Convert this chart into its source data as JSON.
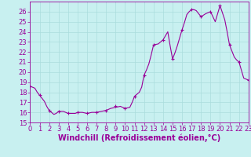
{
  "title": "",
  "xlabel": "Windchill (Refroidissement éolien,°C)",
  "ylabel": "",
  "bg_color": "#c8f0f0",
  "line_color": "#990099",
  "marker_color": "#990099",
  "xlim": [
    0,
    23
  ],
  "ylim": [
    15,
    27
  ],
  "yticks": [
    15,
    16,
    17,
    18,
    19,
    20,
    21,
    22,
    23,
    24,
    25,
    26
  ],
  "xticks": [
    0,
    1,
    2,
    3,
    4,
    5,
    6,
    7,
    8,
    9,
    10,
    11,
    12,
    13,
    14,
    15,
    16,
    17,
    18,
    19,
    20,
    21,
    22,
    23
  ],
  "hours": [
    0,
    0.25,
    0.5,
    0.75,
    1.0,
    1.25,
    1.5,
    1.75,
    2.0,
    2.25,
    2.5,
    2.75,
    3.0,
    3.25,
    3.5,
    3.75,
    4.0,
    4.25,
    4.5,
    4.75,
    5.0,
    5.25,
    5.5,
    5.75,
    6.0,
    6.25,
    6.5,
    6.75,
    7.0,
    7.25,
    7.5,
    7.75,
    8.0,
    8.25,
    8.5,
    8.75,
    9.0,
    9.25,
    9.5,
    9.75,
    10.0,
    10.25,
    10.5,
    10.75,
    11.0,
    11.25,
    11.5,
    11.75,
    12.0,
    12.25,
    12.5,
    12.75,
    13.0,
    13.25,
    13.5,
    13.75,
    14.0,
    14.25,
    14.5,
    14.75,
    15.0,
    15.25,
    15.5,
    15.75,
    16.0,
    16.25,
    16.5,
    16.75,
    17.0,
    17.25,
    17.5,
    17.75,
    18.0,
    18.25,
    18.5,
    18.75,
    19.0,
    19.25,
    19.5,
    19.75,
    20.0,
    20.25,
    20.5,
    20.75,
    21.0,
    21.25,
    21.5,
    21.75,
    22.0,
    22.25,
    22.5,
    22.75,
    23.0
  ],
  "values": [
    18.6,
    18.5,
    18.4,
    18.0,
    17.7,
    17.4,
    17.1,
    16.6,
    16.2,
    16.0,
    15.8,
    15.9,
    16.1,
    16.1,
    16.1,
    16.0,
    15.9,
    15.9,
    15.9,
    15.9,
    16.0,
    16.0,
    16.0,
    15.95,
    15.9,
    15.95,
    16.0,
    16.0,
    16.0,
    16.05,
    16.1,
    16.15,
    16.2,
    16.3,
    16.4,
    16.45,
    16.5,
    16.55,
    16.6,
    16.5,
    16.4,
    16.45,
    16.5,
    17.0,
    17.6,
    17.8,
    18.0,
    18.5,
    19.7,
    20.2,
    20.8,
    21.7,
    22.7,
    22.75,
    22.8,
    23.0,
    23.2,
    23.6,
    24.0,
    22.6,
    21.3,
    21.9,
    22.6,
    23.4,
    24.2,
    24.9,
    25.7,
    26.0,
    26.2,
    26.2,
    26.1,
    25.8,
    25.5,
    25.65,
    25.8,
    25.9,
    26.0,
    25.5,
    25.0,
    25.8,
    26.6,
    25.9,
    25.2,
    24.0,
    22.7,
    22.1,
    21.5,
    21.2,
    21.0,
    20.2,
    19.4,
    19.3,
    19.2
  ],
  "marker_hours": [
    0,
    1,
    2,
    3,
    4,
    5,
    6,
    7,
    8,
    9,
    10,
    11,
    12,
    13,
    14,
    15,
    16,
    17,
    18,
    19,
    20,
    21,
    22,
    23
  ],
  "marker_values": [
    18.6,
    17.7,
    16.2,
    16.1,
    15.9,
    16.0,
    15.9,
    16.0,
    16.2,
    16.6,
    16.4,
    17.6,
    19.7,
    22.7,
    23.2,
    21.3,
    24.2,
    26.2,
    25.5,
    26.0,
    26.6,
    22.7,
    21.0,
    19.2
  ],
  "grid_color": "#aadddd",
  "axis_color": "#990099",
  "tick_color": "#990099",
  "label_color": "#990099",
  "font_size": 6.0,
  "xlabel_fontsize": 7.0,
  "linewidth": 0.8
}
